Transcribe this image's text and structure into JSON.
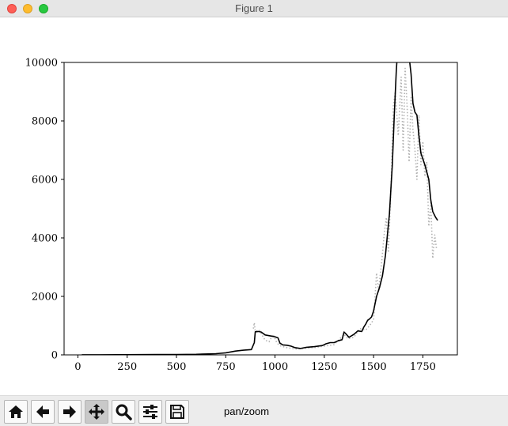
{
  "window": {
    "title": "Figure 1"
  },
  "toolbar": {
    "buttons": [
      {
        "name": "home",
        "icon": "home-icon"
      },
      {
        "name": "back",
        "icon": "arrow-left-icon"
      },
      {
        "name": "forward",
        "icon": "arrow-right-icon"
      },
      {
        "name": "pan",
        "icon": "move-icon",
        "active": true
      },
      {
        "name": "zoom",
        "icon": "magnifier-icon"
      },
      {
        "name": "configure-subplots",
        "icon": "sliders-icon"
      },
      {
        "name": "save",
        "icon": "floppy-disk-icon"
      }
    ],
    "mode_text": "pan/zoom"
  },
  "chart_data": {
    "type": "line",
    "xlim": [
      -70,
      1925
    ],
    "ylim": [
      0,
      10000
    ],
    "x_ticks": [
      0,
      250,
      500,
      750,
      1000,
      1250,
      1500,
      1750
    ],
    "x_tick_labels": [
      "0",
      "250",
      "500",
      "750",
      "1000",
      "1250",
      "1500",
      "1750"
    ],
    "y_ticks": [
      0,
      2000,
      4000,
      6000,
      8000,
      10000
    ],
    "y_tick_labels": [
      "0",
      "2000",
      "4000",
      "6000",
      "8000",
      "10000"
    ],
    "grid": false,
    "legend": "none",
    "series": [
      {
        "style": "solid",
        "color": "#000000",
        "points": [
          [
            20,
            3
          ],
          [
            100,
            3
          ],
          [
            200,
            5
          ],
          [
            300,
            8
          ],
          [
            400,
            10
          ],
          [
            500,
            14
          ],
          [
            600,
            20
          ],
          [
            700,
            40
          ],
          [
            750,
            70
          ],
          [
            800,
            130
          ],
          [
            840,
            160
          ],
          [
            880,
            180
          ],
          [
            895,
            420
          ],
          [
            900,
            790
          ],
          [
            915,
            800
          ],
          [
            930,
            780
          ],
          [
            950,
            680
          ],
          [
            975,
            650
          ],
          [
            1000,
            620
          ],
          [
            1015,
            580
          ],
          [
            1025,
            400
          ],
          [
            1040,
            340
          ],
          [
            1060,
            330
          ],
          [
            1080,
            300
          ],
          [
            1100,
            250
          ],
          [
            1130,
            220
          ],
          [
            1160,
            260
          ],
          [
            1200,
            280
          ],
          [
            1240,
            320
          ],
          [
            1260,
            380
          ],
          [
            1280,
            420
          ],
          [
            1300,
            420
          ],
          [
            1320,
            480
          ],
          [
            1340,
            520
          ],
          [
            1350,
            780
          ],
          [
            1360,
            720
          ],
          [
            1375,
            600
          ],
          [
            1400,
            700
          ],
          [
            1420,
            820
          ],
          [
            1440,
            800
          ],
          [
            1450,
            950
          ],
          [
            1460,
            1050
          ],
          [
            1470,
            1180
          ],
          [
            1480,
            1230
          ],
          [
            1490,
            1300
          ],
          [
            1500,
            1500
          ],
          [
            1515,
            2000
          ],
          [
            1530,
            2300
          ],
          [
            1545,
            2700
          ],
          [
            1560,
            3400
          ],
          [
            1570,
            4100
          ],
          [
            1580,
            4800
          ],
          [
            1595,
            6500
          ],
          [
            1605,
            8200
          ],
          [
            1615,
            9700
          ],
          [
            1620,
            10200
          ],
          [
            1680,
            10200
          ],
          [
            1690,
            9600
          ],
          [
            1700,
            8600
          ],
          [
            1710,
            8300
          ],
          [
            1720,
            8200
          ],
          [
            1730,
            7500
          ],
          [
            1740,
            6900
          ],
          [
            1760,
            6500
          ],
          [
            1780,
            6000
          ],
          [
            1790,
            5300
          ],
          [
            1800,
            4900
          ],
          [
            1815,
            4700
          ],
          [
            1825,
            4600
          ]
        ]
      },
      {
        "style": "dotted",
        "color": "#b3b3b3",
        "points": [
          [
            890,
            900
          ],
          [
            895,
            1100
          ],
          [
            900,
            800
          ],
          [
            920,
            850
          ],
          [
            950,
            500
          ],
          [
            970,
            450
          ],
          [
            990,
            700
          ],
          [
            1010,
            400
          ],
          [
            1030,
            300
          ],
          [
            1060,
            250
          ],
          [
            1100,
            200
          ],
          [
            1200,
            250
          ],
          [
            1250,
            300
          ],
          [
            1300,
            350
          ],
          [
            1350,
            700
          ],
          [
            1370,
            550
          ],
          [
            1400,
            600
          ],
          [
            1430,
            900
          ],
          [
            1460,
            850
          ],
          [
            1480,
            1000
          ],
          [
            1500,
            1200
          ],
          [
            1515,
            2800
          ],
          [
            1525,
            2200
          ],
          [
            1540,
            3100
          ],
          [
            1555,
            4200
          ],
          [
            1565,
            4700
          ],
          [
            1575,
            3500
          ],
          [
            1590,
            6000
          ],
          [
            1600,
            8500
          ],
          [
            1610,
            9000
          ],
          [
            1625,
            7500
          ],
          [
            1640,
            9500
          ],
          [
            1650,
            7000
          ],
          [
            1660,
            9800
          ],
          [
            1670,
            8500
          ],
          [
            1680,
            6600
          ],
          [
            1690,
            8800
          ],
          [
            1700,
            7700
          ],
          [
            1710,
            7000
          ],
          [
            1720,
            6000
          ],
          [
            1730,
            8200
          ],
          [
            1740,
            6500
          ],
          [
            1750,
            7300
          ],
          [
            1760,
            6100
          ],
          [
            1770,
            6600
          ],
          [
            1780,
            4400
          ],
          [
            1790,
            5200
          ],
          [
            1800,
            3300
          ],
          [
            1810,
            4100
          ],
          [
            1820,
            3600
          ]
        ]
      }
    ]
  }
}
